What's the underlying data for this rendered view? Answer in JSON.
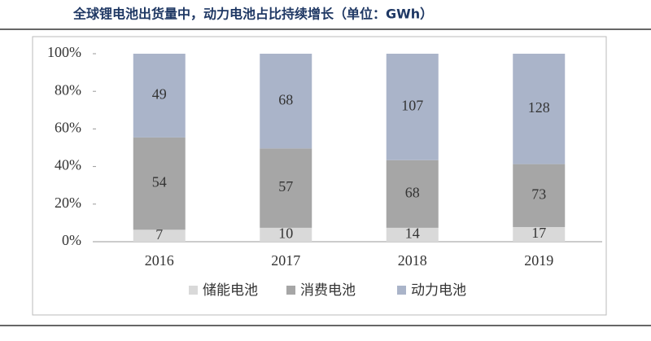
{
  "chart_data": {
    "type": "stacked_percent_bar",
    "title": "全球锂电池出货量中，动力电池占比持续增长（单位：GWh）",
    "categories": [
      "2016",
      "2017",
      "2018",
      "2019"
    ],
    "series": [
      {
        "name": "储能电池",
        "color": "#d9d9d9",
        "values": [
          7,
          10,
          14,
          17
        ]
      },
      {
        "name": "消费电池",
        "color": "#a6a6a6",
        "values": [
          54,
          57,
          68,
          73
        ]
      },
      {
        "name": "动力电池",
        "color": "#aab4c9",
        "values": [
          49,
          68,
          107,
          128
        ]
      }
    ],
    "ylim": [
      0,
      100
    ],
    "yticks": [
      {
        "value": 0,
        "label": "0%"
      },
      {
        "value": 20,
        "label": "20%"
      },
      {
        "value": 40,
        "label": "40%"
      },
      {
        "value": 60,
        "label": "60%"
      },
      {
        "value": 80,
        "label": "80%"
      },
      {
        "value": 100,
        "label": "100%"
      }
    ],
    "legend": "bottom"
  }
}
